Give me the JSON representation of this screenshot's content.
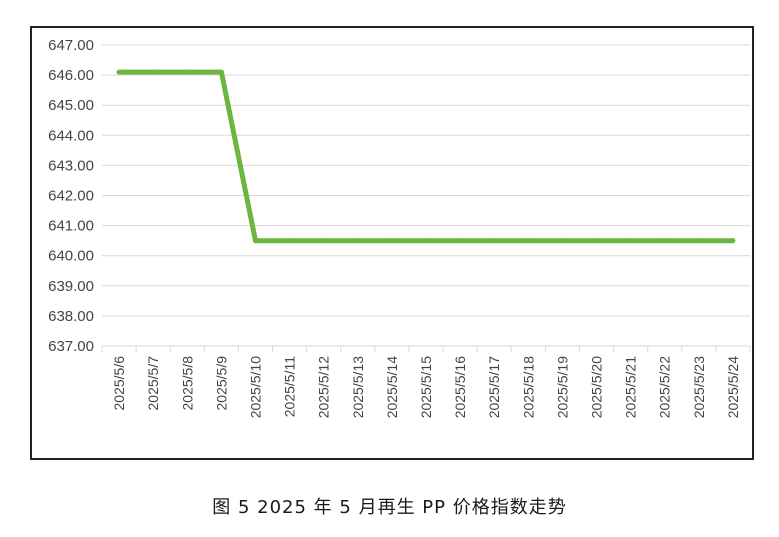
{
  "caption": "图 5  2025 年 5 月再生 PP 价格指数走势",
  "chart_data": {
    "type": "line",
    "title": "",
    "xlabel": "",
    "ylabel": "",
    "ylim": [
      637,
      647
    ],
    "y_ticks": [
      "647.00",
      "646.00",
      "645.00",
      "644.00",
      "643.00",
      "642.00",
      "641.00",
      "640.00",
      "639.00",
      "638.00",
      "637.00"
    ],
    "grid": "horizontal",
    "legend": "none",
    "categories": [
      "2025/5/6",
      "2025/5/7",
      "2025/5/8",
      "2025/5/9",
      "2025/5/10",
      "2025/5/11",
      "2025/5/12",
      "2025/5/13",
      "2025/5/14",
      "2025/5/15",
      "2025/5/16",
      "2025/5/17",
      "2025/5/18",
      "2025/5/19",
      "2025/5/20",
      "2025/5/21",
      "2025/5/22",
      "2025/5/23",
      "2025/5/24"
    ],
    "series": [
      {
        "color": "#6ab640",
        "values": [
          646.1,
          646.1,
          646.1,
          646.1,
          640.5,
          640.5,
          640.5,
          640.5,
          640.5,
          640.5,
          640.5,
          640.5,
          640.5,
          640.5,
          640.5,
          640.5,
          640.5,
          640.5,
          640.5
        ]
      }
    ]
  }
}
